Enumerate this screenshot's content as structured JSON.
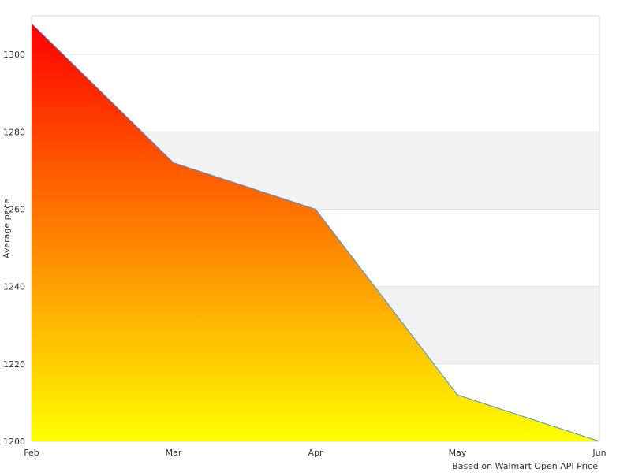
{
  "chart_data": {
    "type": "area",
    "title": "",
    "xlabel": "",
    "ylabel": "Average price",
    "credit": "Based on Walmart Open API Price",
    "categories": [
      "Feb",
      "Mar",
      "Apr",
      "May",
      "Jun"
    ],
    "series": [
      {
        "values": [
          1308,
          1272,
          1260,
          1212,
          1200
        ]
      }
    ],
    "ylim": [
      1200,
      1310
    ],
    "yticks": [
      1200,
      1220,
      1240,
      1260,
      1280,
      1300
    ],
    "grid": true,
    "alternate_band_color": "#f2f2f2",
    "fill_gradient": {
      "top": "#ff0000",
      "bottom": "#ffff00"
    },
    "line_color": "#4a90d9"
  }
}
